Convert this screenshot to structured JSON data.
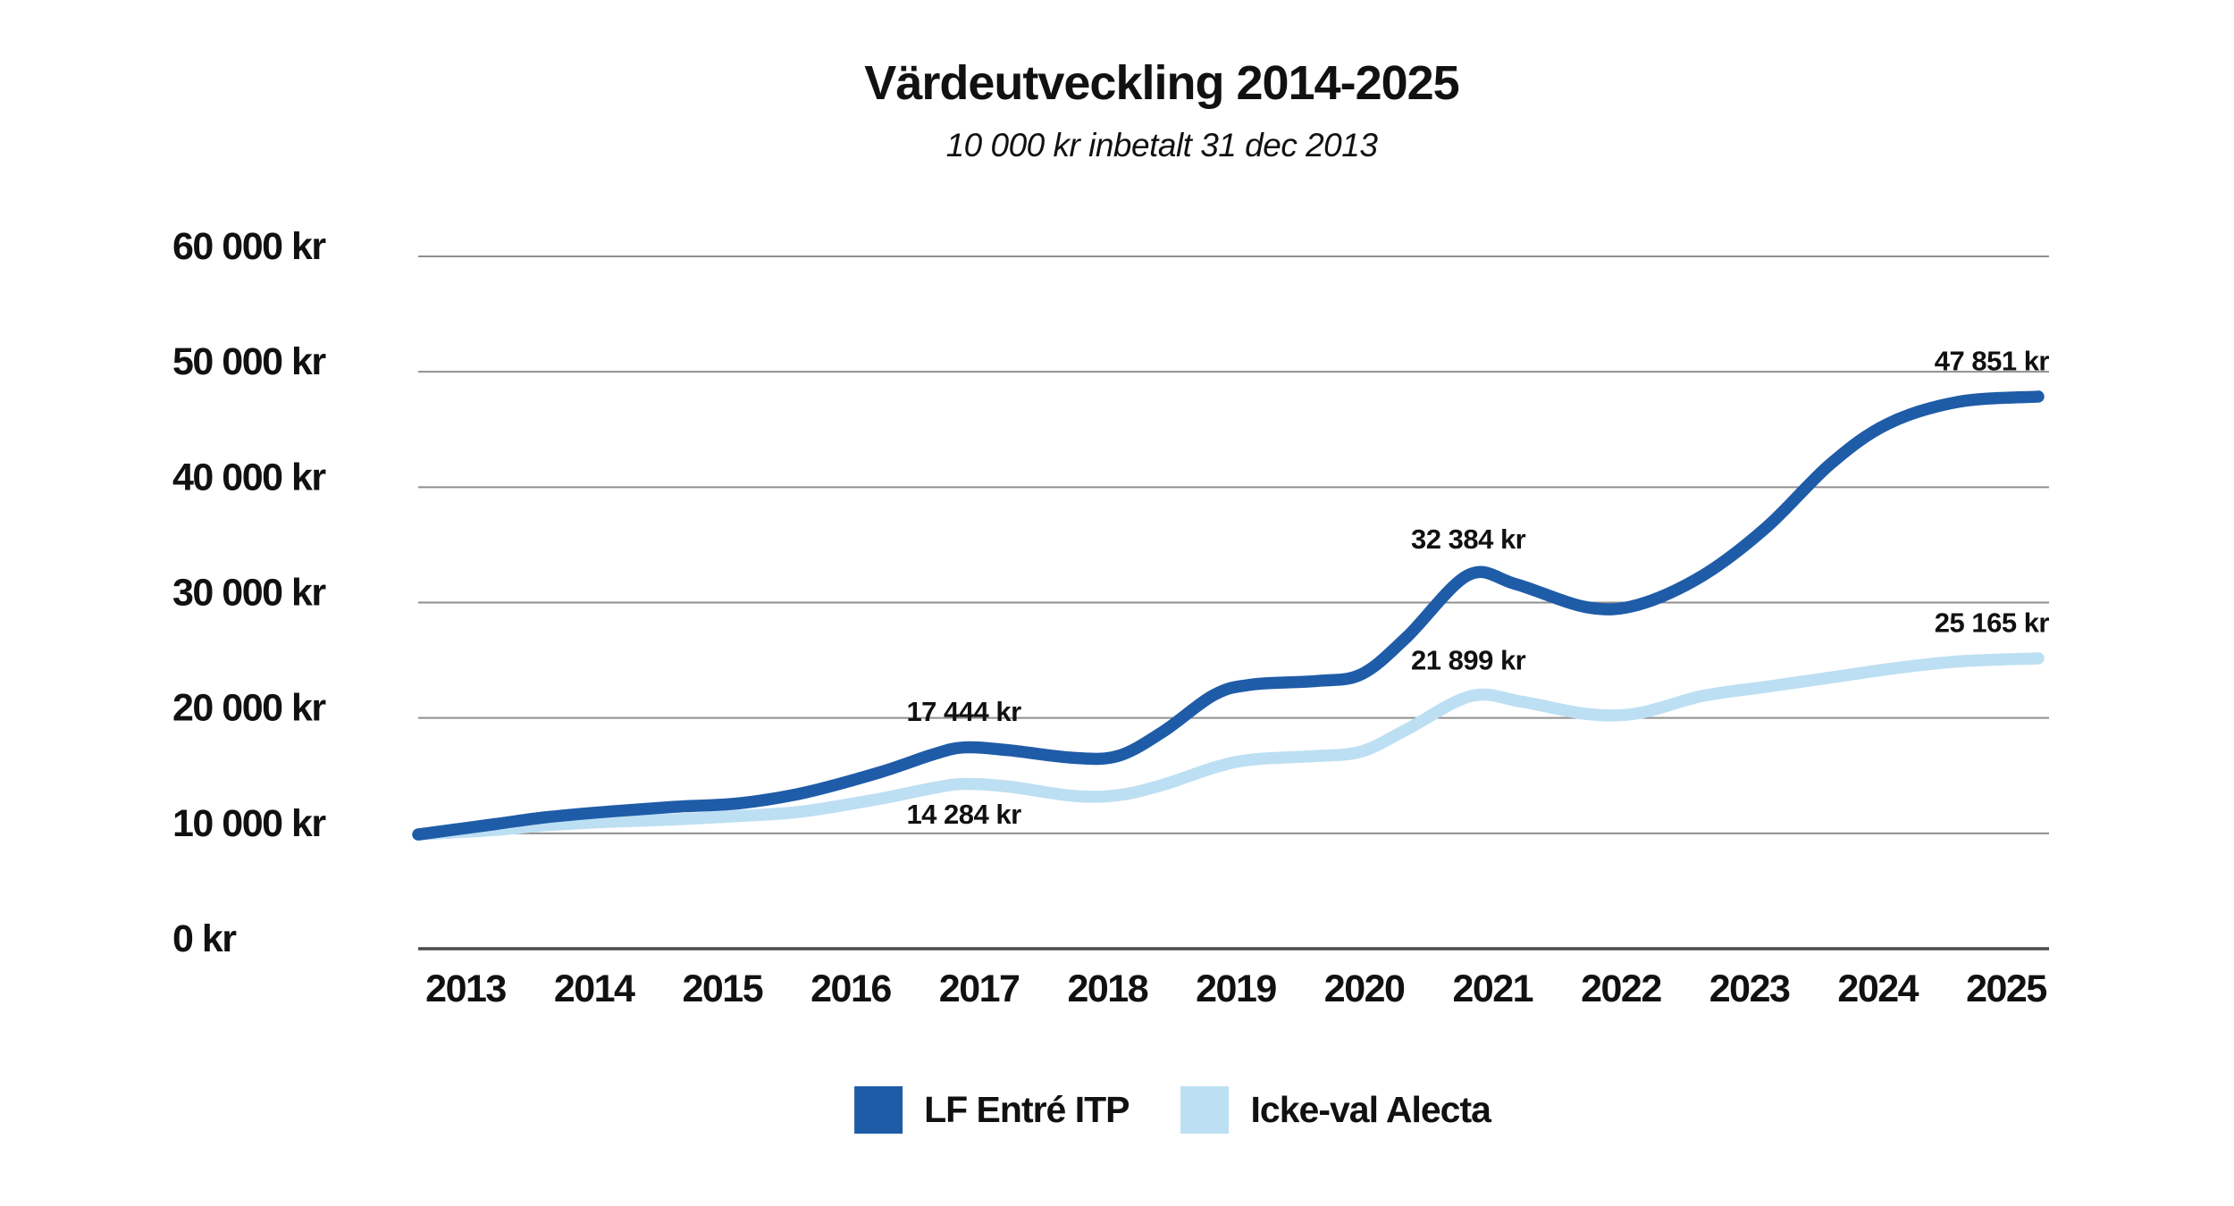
{
  "title": "Värdeutveckling 2014-2025",
  "subtitle": "10 000 kr inbetalt 31 dec 2013",
  "colors": {
    "primary_blue": "#1f5ca8",
    "light_blue": "#bddff3",
    "grid_gray": "#8f8f8f",
    "axis_gray": "#4a4a4a",
    "text": "#111111",
    "background": "#ffffff"
  },
  "chart_data": {
    "type": "line",
    "title": "Värdeutveckling 2014-2025",
    "subtitle": "10 000 kr inbetalt 31 dec 2013",
    "currency": "kr",
    "ylim": [
      0,
      60000
    ],
    "grid": true,
    "legend_position": "bottom",
    "y_ticks": [
      {
        "value": 0,
        "label": "0 kr"
      },
      {
        "value": 10000,
        "label": "10 000 kr"
      },
      {
        "value": 20000,
        "label": "20 000 kr"
      },
      {
        "value": 30000,
        "label": "30 000 kr"
      },
      {
        "value": 40000,
        "label": "40 000 kr"
      },
      {
        "value": 50000,
        "label": "50 000 kr"
      },
      {
        "value": 60000,
        "label": "60 000 kr"
      }
    ],
    "x_ticks": [
      "2013",
      "2014",
      "2015",
      "2016",
      "2017",
      "2018",
      "2019",
      "2020",
      "2021",
      "2022",
      "2023",
      "2024",
      "2025"
    ],
    "series": [
      {
        "id": "icke-val-alecta",
        "name": "Icke-val Alecta",
        "color": "#bddff3",
        "labeled_values": {
          "2017": 14284,
          "2021": 21899,
          "2025": 25165
        },
        "yearly_estimates": [
          10000,
          10700,
          11200,
          11900,
          14284,
          13400,
          15500,
          16700,
          21899,
          20400,
          22000,
          23400,
          25165
        ],
        "curve_points": [
          [
            2013.0,
            9900
          ],
          [
            2013.6,
            10300
          ],
          [
            2014.0,
            10700
          ],
          [
            2014.5,
            11000
          ],
          [
            2015.0,
            11200
          ],
          [
            2015.5,
            11500
          ],
          [
            2016.0,
            11900
          ],
          [
            2016.6,
            13000
          ],
          [
            2017.0,
            13900
          ],
          [
            2017.25,
            14284
          ],
          [
            2017.6,
            14050
          ],
          [
            2018.1,
            13250
          ],
          [
            2018.45,
            13300
          ],
          [
            2018.8,
            14200
          ],
          [
            2019.2,
            15700
          ],
          [
            2019.5,
            16400
          ],
          [
            2020.0,
            16700
          ],
          [
            2020.35,
            17100
          ],
          [
            2020.7,
            19000
          ],
          [
            2021.2,
            21899
          ],
          [
            2021.6,
            21400
          ],
          [
            2022.1,
            20350
          ],
          [
            2022.5,
            20400
          ],
          [
            2023.0,
            21900
          ],
          [
            2023.5,
            22700
          ],
          [
            2024.0,
            23500
          ],
          [
            2024.5,
            24300
          ],
          [
            2025.0,
            24900
          ],
          [
            2025.62,
            25165
          ]
        ]
      },
      {
        "id": "lf-entre-itp",
        "name": "LF Entré ITP",
        "color": "#1f5ca8",
        "labeled_values": {
          "2017": 17444,
          "2021": 32384,
          "2025": 47851
        },
        "yearly_estimates": [
          10000,
          11500,
          12300,
          13500,
          17444,
          16600,
          22000,
          23200,
          32384,
          29700,
          32500,
          42000,
          47851
        ],
        "curve_points": [
          [
            2013.0,
            9900
          ],
          [
            2013.6,
            10800
          ],
          [
            2014.0,
            11400
          ],
          [
            2014.5,
            11900
          ],
          [
            2015.0,
            12300
          ],
          [
            2015.5,
            12600
          ],
          [
            2016.0,
            13500
          ],
          [
            2016.6,
            15300
          ],
          [
            2017.0,
            16800
          ],
          [
            2017.25,
            17444
          ],
          [
            2017.6,
            17200
          ],
          [
            2018.1,
            16550
          ],
          [
            2018.45,
            16700
          ],
          [
            2018.8,
            18800
          ],
          [
            2019.2,
            22000
          ],
          [
            2019.5,
            22900
          ],
          [
            2020.0,
            23200
          ],
          [
            2020.35,
            23800
          ],
          [
            2020.7,
            27000
          ],
          [
            2021.18,
            32384
          ],
          [
            2021.55,
            31600
          ],
          [
            2022.1,
            29600
          ],
          [
            2022.5,
            29800
          ],
          [
            2023.0,
            32300
          ],
          [
            2023.5,
            36500
          ],
          [
            2024.0,
            42000
          ],
          [
            2024.45,
            45500
          ],
          [
            2025.0,
            47400
          ],
          [
            2025.62,
            47851
          ]
        ]
      }
    ],
    "annotations": [
      {
        "series": "LF Entré ITP",
        "label": "17 444 kr",
        "x": 2017.25,
        "value": 17444,
        "placement": "above"
      },
      {
        "series": "Icke-val Alecta",
        "label": "14 284 kr",
        "x": 2017.25,
        "value": 14284,
        "placement": "below"
      },
      {
        "series": "LF Entré ITP",
        "label": "32 384 kr",
        "x": 2021.18,
        "value": 32384,
        "placement": "above"
      },
      {
        "series": "Icke-val Alecta",
        "label": "21 899 kr",
        "x": 2021.18,
        "value": 21899,
        "placement": "above"
      },
      {
        "series": "LF Entré ITP",
        "label": "47 851 kr",
        "x": 2025.62,
        "value": 47851,
        "placement": "above",
        "anchor": "end"
      },
      {
        "series": "Icke-val Alecta",
        "label": "25 165 kr",
        "x": 2025.62,
        "value": 25165,
        "placement": "above",
        "anchor": "end"
      }
    ],
    "legend": [
      {
        "id": "lf-entre-itp",
        "label": "LF Entré ITP",
        "color": "#1f5ca8"
      },
      {
        "id": "icke-val-alecta",
        "label": "Icke-val Alecta",
        "color": "#bddff3"
      }
    ]
  }
}
